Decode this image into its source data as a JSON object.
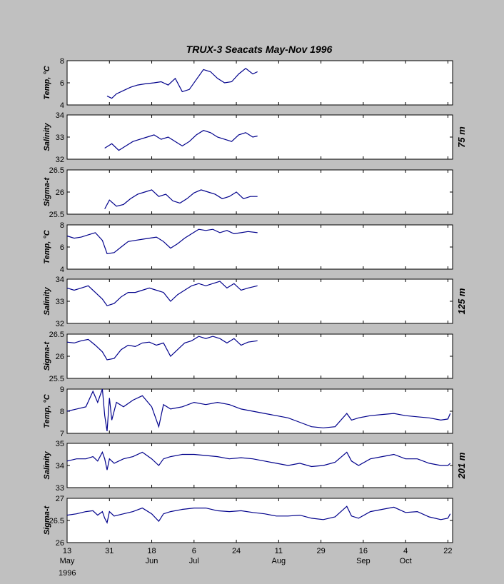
{
  "figure_title": "TRUX-3   Seacats   May-Nov 1996",
  "chart_data": [
    {
      "type": "line",
      "ylabel": "Temp, °C",
      "ylim": [
        4,
        8
      ],
      "yticks": [
        "4",
        "6",
        "8"
      ],
      "depth_group": "75 m",
      "series": [
        {
          "color": "#00008b",
          "x": [
            30,
            32,
            34,
            37,
            40,
            43,
            46,
            50,
            53,
            56,
            59,
            62,
            65,
            68,
            71,
            74,
            77,
            80,
            83,
            86,
            89,
            92,
            94
          ],
          "y": [
            4.8,
            4.6,
            5.0,
            5.3,
            5.6,
            5.8,
            5.9,
            6.0,
            6.1,
            5.8,
            6.4,
            5.2,
            5.4,
            6.3,
            7.2,
            7.0,
            6.4,
            6.0,
            6.1,
            6.8,
            7.3,
            6.8,
            7.0
          ]
        }
      ]
    },
    {
      "type": "line",
      "ylabel": "Salinity",
      "ylim": [
        32,
        34
      ],
      "yticks": [
        "32",
        "33",
        "34"
      ],
      "depth_group": "75 m",
      "series": [
        {
          "color": "#00008b",
          "x": [
            29,
            32,
            35,
            38,
            41,
            44,
            47,
            50,
            53,
            56,
            59,
            62,
            65,
            68,
            71,
            74,
            77,
            80,
            83,
            86,
            89,
            92,
            94
          ],
          "y": [
            32.5,
            32.7,
            32.4,
            32.6,
            32.8,
            32.9,
            33.0,
            33.1,
            32.9,
            33.0,
            32.8,
            32.6,
            32.8,
            33.1,
            33.3,
            33.2,
            33.0,
            32.9,
            32.8,
            33.1,
            33.2,
            33.0,
            33.05
          ]
        }
      ]
    },
    {
      "type": "line",
      "ylabel": "Sigma-t",
      "ylim": [
        25.5,
        26.5
      ],
      "yticks": [
        "25.5",
        "26",
        "26.5"
      ],
      "depth_group": "75 m",
      "series": [
        {
          "color": "#00008b",
          "x": [
            29,
            31,
            34,
            37,
            40,
            43,
            46,
            49,
            52,
            55,
            58,
            61,
            64,
            67,
            70,
            73,
            76,
            79,
            82,
            85,
            88,
            91,
            94
          ],
          "y": [
            25.62,
            25.82,
            25.68,
            25.72,
            25.85,
            25.95,
            26.0,
            26.05,
            25.9,
            25.95,
            25.8,
            25.75,
            25.85,
            25.98,
            26.05,
            26.0,
            25.95,
            25.85,
            25.9,
            26.0,
            25.85,
            25.9,
            25.9
          ]
        }
      ]
    },
    {
      "type": "line",
      "ylabel": "Temp, °C",
      "ylim": [
        4,
        8
      ],
      "yticks": [
        "4",
        "6",
        "8"
      ],
      "depth_group": "125 m",
      "series": [
        {
          "color": "#00008b",
          "x": [
            13,
            16,
            19,
            22,
            25,
            28,
            30,
            33,
            36,
            39,
            42,
            45,
            48,
            51,
            54,
            57,
            60,
            63,
            66,
            69,
            72,
            75,
            78,
            81,
            84,
            87,
            90,
            94
          ],
          "y": [
            7.0,
            6.8,
            6.9,
            7.1,
            7.3,
            6.6,
            5.4,
            5.5,
            6.0,
            6.5,
            6.6,
            6.7,
            6.8,
            6.9,
            6.5,
            5.9,
            6.3,
            6.8,
            7.2,
            7.6,
            7.5,
            7.6,
            7.3,
            7.5,
            7.2,
            7.3,
            7.4,
            7.3
          ]
        }
      ]
    },
    {
      "type": "line",
      "ylabel": "Salinity",
      "ylim": [
        32,
        34
      ],
      "yticks": [
        "32",
        "33",
        "34"
      ],
      "depth_group": "125 m",
      "series": [
        {
          "color": "#00008b",
          "x": [
            13,
            16,
            19,
            22,
            25,
            28,
            30,
            33,
            36,
            39,
            42,
            45,
            48,
            51,
            54,
            57,
            60,
            63,
            66,
            69,
            72,
            75,
            78,
            81,
            84,
            87,
            90,
            94
          ],
          "y": [
            33.6,
            33.5,
            33.6,
            33.7,
            33.4,
            33.1,
            32.8,
            32.9,
            33.2,
            33.4,
            33.4,
            33.5,
            33.6,
            33.5,
            33.4,
            33.0,
            33.3,
            33.5,
            33.7,
            33.8,
            33.7,
            33.8,
            33.9,
            33.6,
            33.8,
            33.5,
            33.6,
            33.7
          ]
        }
      ]
    },
    {
      "type": "line",
      "ylabel": "Sigma-t",
      "ylim": [
        25.5,
        26.5
      ],
      "yticks": [
        "25.5",
        "26",
        "26.5"
      ],
      "depth_group": "125 m",
      "series": [
        {
          "color": "#00008b",
          "x": [
            13,
            16,
            19,
            22,
            25,
            28,
            30,
            33,
            36,
            39,
            42,
            45,
            48,
            51,
            54,
            57,
            60,
            63,
            66,
            69,
            72,
            75,
            78,
            81,
            84,
            87,
            90,
            94
          ],
          "y": [
            26.32,
            26.3,
            26.35,
            26.38,
            26.25,
            26.1,
            25.92,
            25.95,
            26.15,
            26.25,
            26.22,
            26.3,
            26.32,
            26.25,
            26.3,
            26.0,
            26.15,
            26.3,
            26.35,
            26.45,
            26.4,
            26.45,
            26.4,
            26.3,
            26.4,
            26.25,
            26.32,
            26.35
          ]
        }
      ]
    },
    {
      "type": "line",
      "ylabel": "Temp, °C",
      "ylim": [
        7,
        9
      ],
      "yticks": [
        "7",
        "8",
        "9"
      ],
      "depth_group": "201 m",
      "series": [
        {
          "color": "#00008b",
          "x": [
            13,
            17,
            21,
            24,
            26,
            28,
            29,
            30,
            31,
            32,
            34,
            37,
            41,
            45,
            49,
            52,
            54,
            57,
            62,
            67,
            72,
            77,
            82,
            87,
            92,
            97,
            102,
            107,
            112,
            117,
            122,
            127,
            132,
            134,
            137,
            142,
            147,
            152,
            157,
            162,
            167,
            172,
            175,
            176
          ],
          "y": [
            8.0,
            8.1,
            8.2,
            8.9,
            8.4,
            9.0,
            7.8,
            7.1,
            8.6,
            7.6,
            8.4,
            8.2,
            8.5,
            8.7,
            8.2,
            7.3,
            8.3,
            8.1,
            8.2,
            8.4,
            8.3,
            8.4,
            8.3,
            8.1,
            8.0,
            7.9,
            7.8,
            7.7,
            7.5,
            7.3,
            7.25,
            7.3,
            7.9,
            7.6,
            7.7,
            7.8,
            7.85,
            7.9,
            7.8,
            7.75,
            7.7,
            7.6,
            7.65,
            7.9
          ]
        }
      ]
    },
    {
      "type": "line",
      "ylabel": "Salinity",
      "ylim": [
        33,
        35
      ],
      "yticks": [
        "33",
        "34",
        "35"
      ],
      "depth_group": "201 m",
      "series": [
        {
          "color": "#00008b",
          "x": [
            13,
            17,
            21,
            24,
            26,
            28,
            29,
            30,
            31,
            33,
            37,
            41,
            45,
            49,
            52,
            54,
            57,
            62,
            67,
            72,
            77,
            82,
            87,
            92,
            97,
            102,
            107,
            112,
            117,
            122,
            127,
            132,
            134,
            137,
            142,
            147,
            152,
            157,
            162,
            167,
            172,
            175,
            176
          ],
          "y": [
            34.2,
            34.3,
            34.3,
            34.4,
            34.2,
            34.6,
            34.3,
            33.8,
            34.3,
            34.1,
            34.3,
            34.4,
            34.6,
            34.3,
            34.0,
            34.3,
            34.4,
            34.5,
            34.5,
            34.45,
            34.4,
            34.3,
            34.35,
            34.3,
            34.2,
            34.1,
            34.0,
            34.1,
            33.95,
            34.0,
            34.15,
            34.6,
            34.2,
            34.0,
            34.3,
            34.4,
            34.5,
            34.3,
            34.3,
            34.1,
            34.0,
            34.0,
            34.1
          ]
        }
      ]
    },
    {
      "type": "line",
      "ylabel": "Sigma-t",
      "ylim": [
        26,
        27
      ],
      "yticks": [
        "26",
        "26.5",
        "27"
      ],
      "depth_group": "201 m",
      "series": [
        {
          "color": "#00008b",
          "x": [
            13,
            17,
            21,
            24,
            26,
            28,
            29,
            30,
            31,
            33,
            37,
            41,
            45,
            49,
            52,
            54,
            57,
            62,
            67,
            72,
            77,
            82,
            87,
            92,
            97,
            102,
            107,
            112,
            117,
            122,
            127,
            132,
            134,
            137,
            142,
            147,
            152,
            157,
            162,
            167,
            172,
            175,
            176
          ],
          "y": [
            26.62,
            26.65,
            26.7,
            26.72,
            26.62,
            26.7,
            26.55,
            26.45,
            26.7,
            26.6,
            26.65,
            26.7,
            26.78,
            26.65,
            26.48,
            26.65,
            26.7,
            26.75,
            26.78,
            26.78,
            26.72,
            26.7,
            26.72,
            26.68,
            26.65,
            26.6,
            26.6,
            26.62,
            26.55,
            26.52,
            26.58,
            26.82,
            26.6,
            26.55,
            26.7,
            26.75,
            26.8,
            26.68,
            26.7,
            26.58,
            26.52,
            26.55,
            26.65
          ]
        }
      ]
    }
  ],
  "depth_labels": [
    "75 m",
    "125 m",
    "201 m"
  ],
  "x_axis": {
    "range": [
      13,
      177
    ],
    "ticks": [
      {
        "x": 13,
        "day": "13",
        "month": "May"
      },
      {
        "x": 31,
        "day": "31",
        "month": ""
      },
      {
        "x": 49,
        "day": "18",
        "month": "Jun"
      },
      {
        "x": 67,
        "day": "6",
        "month": "Jul"
      },
      {
        "x": 85,
        "day": "24",
        "month": ""
      },
      {
        "x": 103,
        "day": "11",
        "month": "Aug"
      },
      {
        "x": 121,
        "day": "29",
        "month": ""
      },
      {
        "x": 139,
        "day": "16",
        "month": "Sep"
      },
      {
        "x": 157,
        "day": "4",
        "month": "Oct"
      },
      {
        "x": 175,
        "day": "22",
        "month": ""
      }
    ],
    "year": "1996"
  }
}
